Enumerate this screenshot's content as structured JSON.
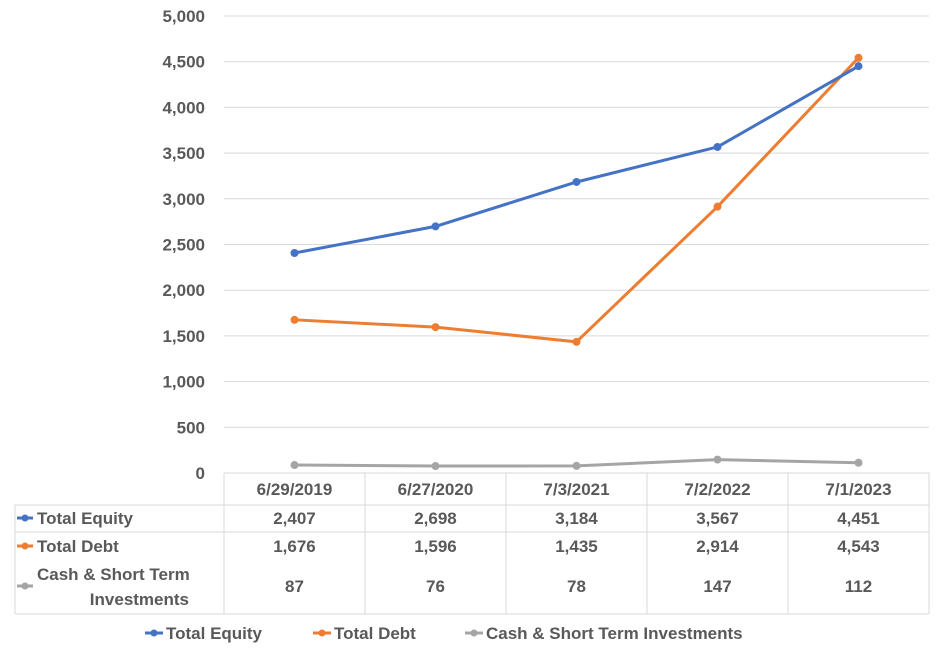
{
  "chart_data": {
    "type": "line",
    "title": "",
    "xlabel": "",
    "ylabel": "",
    "categories": [
      "6/29/2019",
      "6/27/2020",
      "7/3/2021",
      "7/2/2022",
      "7/1/2023"
    ],
    "ylim": [
      0,
      5000
    ],
    "yticks": [
      0,
      500,
      1000,
      1500,
      2000,
      2500,
      3000,
      3500,
      4000,
      4500,
      5000
    ],
    "ytick_labels": [
      "0",
      "500",
      "1,000",
      "1,500",
      "2,000",
      "2,500",
      "3,000",
      "3,500",
      "4,000",
      "4,500",
      "5,000"
    ],
    "grid": true,
    "data_table": true,
    "legend_placement": "bottom",
    "series": [
      {
        "name": "Total Equity",
        "color": "#4472C4",
        "values": [
          2407,
          2698,
          3184,
          3567,
          4451
        ],
        "labels": [
          "2,407",
          "2,698",
          "3,184",
          "3,567",
          "4,451"
        ]
      },
      {
        "name": "Total Debt",
        "color": "#ED7D31",
        "values": [
          1676,
          1596,
          1435,
          2914,
          4543
        ],
        "labels": [
          "1,676",
          "1,596",
          "1,435",
          "2,914",
          "4,543"
        ]
      },
      {
        "name": "Cash & Short Term Investments",
        "name_lines": [
          "Cash & Short Term",
          "Investments"
        ],
        "color": "#A5A5A5",
        "values": [
          87,
          76,
          78,
          147,
          112
        ],
        "labels": [
          "87",
          "76",
          "78",
          "147",
          "112"
        ]
      }
    ]
  }
}
